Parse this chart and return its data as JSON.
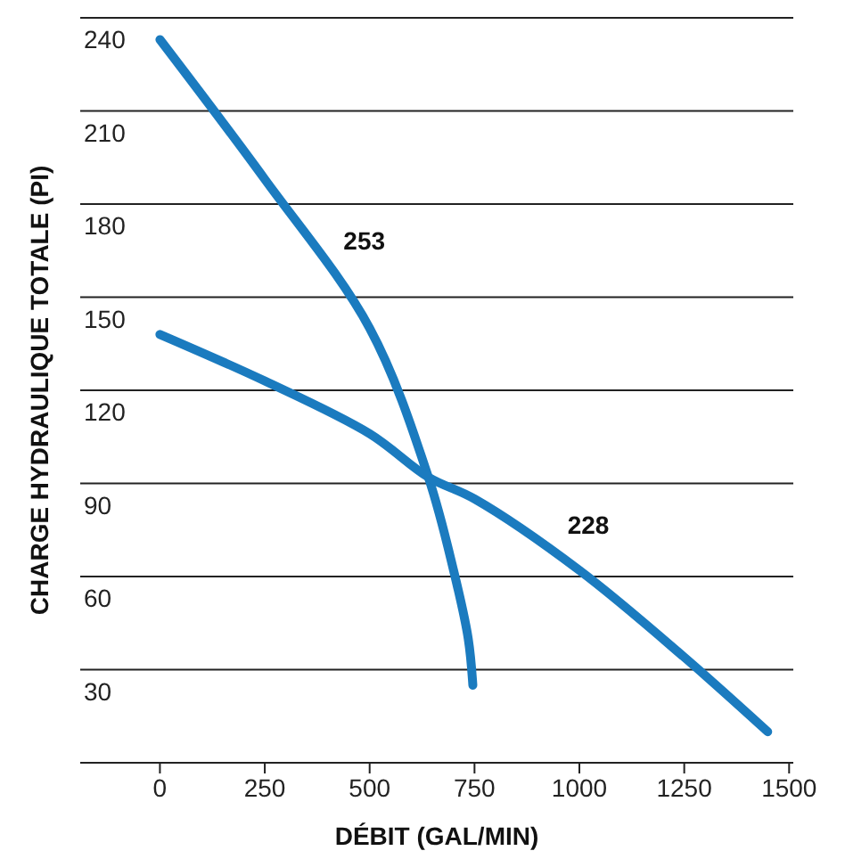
{
  "chart_data": {
    "type": "line",
    "xlabel": "DÉBIT (GAL/MIN)",
    "ylabel": "CHARGE HYDRAULIQUE TOTALE (PI)",
    "xlim": [
      -190,
      1510
    ],
    "xticks": [
      0,
      250,
      500,
      750,
      1000,
      1250,
      1500
    ],
    "ylim": [
      0,
      240
    ],
    "yticks": [
      30,
      60,
      90,
      120,
      150,
      180,
      210,
      240
    ],
    "grid": "y",
    "marker": "none",
    "line_style": "solid",
    "series": [
      {
        "name": "253",
        "color": "#1b7bbf",
        "x": [
          0,
          250,
          500,
          640,
          700,
          735,
          746
        ],
        "values": [
          233,
          188,
          140,
          92,
          62,
          40,
          25
        ]
      },
      {
        "name": "228",
        "color": "#1b7bbf",
        "x": [
          0,
          250,
          500,
          640,
          750,
          1000,
          1250,
          1449
        ],
        "values": [
          138,
          123,
          106,
          92,
          85,
          62,
          34,
          10
        ]
      }
    ]
  }
}
